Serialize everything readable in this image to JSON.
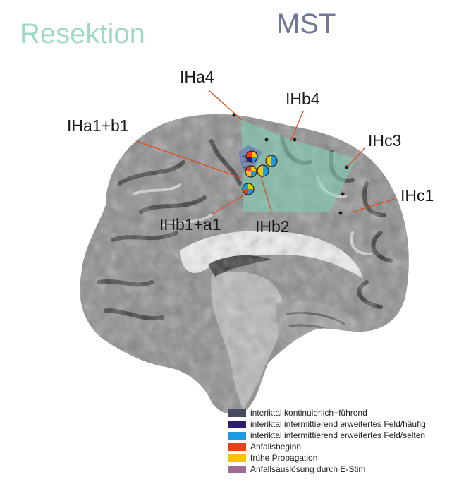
{
  "titles": {
    "resection": "Resektion",
    "mst": "MST"
  },
  "electrodes": [
    {
      "id": "IHa4",
      "label": "IHa4"
    },
    {
      "id": "IHb4",
      "label": "IHb4"
    },
    {
      "id": "IHa1b1",
      "label": "IHa1+b1"
    },
    {
      "id": "IHc3",
      "label": "IHc3"
    },
    {
      "id": "IHc1",
      "label": "IHc1"
    },
    {
      "id": "IHb1a1",
      "label": "IHb1+a1"
    },
    {
      "id": "IHb2",
      "label": "IHb2"
    }
  ],
  "legend": [
    {
      "label": "interiktal kontinuierlich+führend",
      "color": "#4a4a5e"
    },
    {
      "label": "interiktal intermittierend erweitertes Feld/häufig",
      "color": "#2e1a6e"
    },
    {
      "label": "interiktal intermittierend erweitertes Feld/selten",
      "color": "#1e9be0"
    },
    {
      "label": "Anfallsbeginn",
      "color": "#e8401c"
    },
    {
      "label": "frühe Propagation",
      "color": "#f5c400"
    },
    {
      "label": "Anfallsauslösung durch E-Stim",
      "color": "#a06a96"
    }
  ],
  "colors": {
    "resection_area": "#7fd6b8",
    "mst_area": "#6f7fb0",
    "callout_line": "#e04a1e"
  }
}
